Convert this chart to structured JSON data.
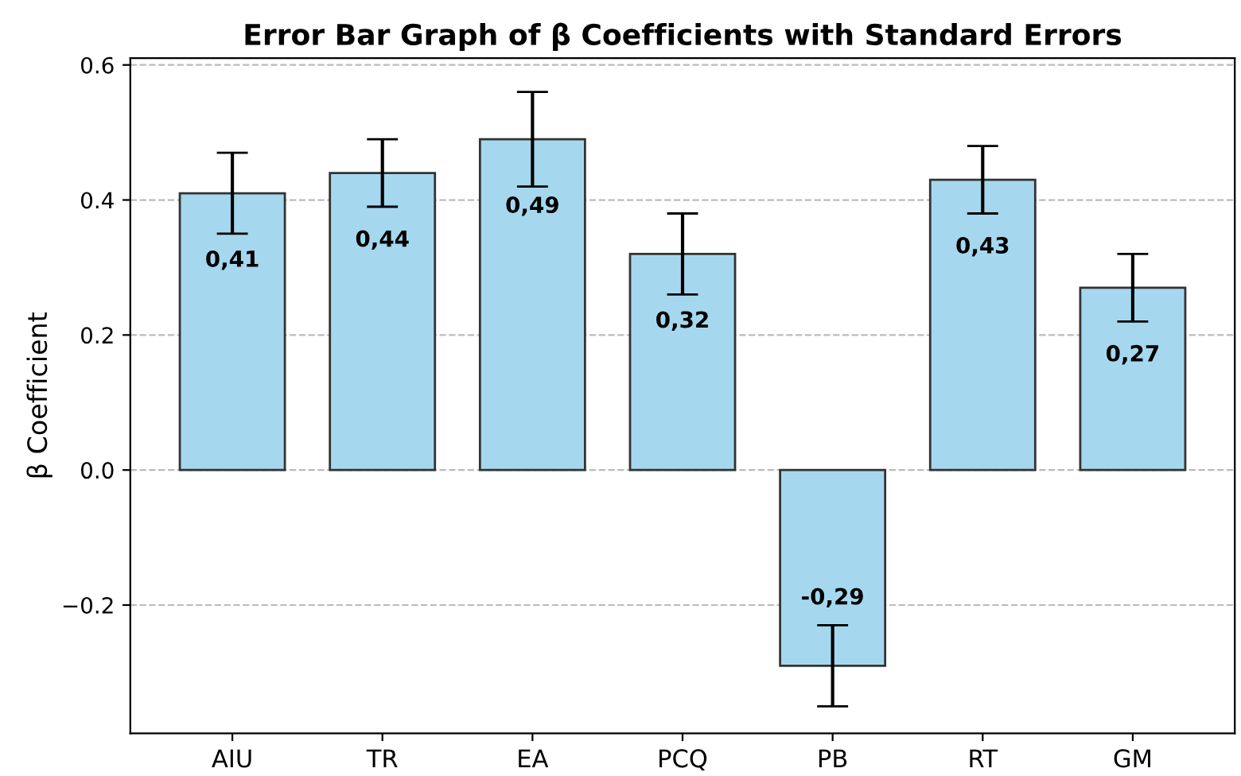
{
  "chart_data": {
    "type": "bar",
    "title": "Error Bar Graph of β Coefficients with Standard Errors",
    "ylabel": "β Coefficient",
    "categories": [
      "AIU",
      "TR",
      "EA",
      "PCQ",
      "PB",
      "RT",
      "GM"
    ],
    "values": [
      0.41,
      0.44,
      0.49,
      0.32,
      -0.29,
      0.43,
      0.27
    ],
    "errors": [
      0.06,
      0.05,
      0.07,
      0.06,
      0.06,
      0.05,
      0.05
    ],
    "value_labels": [
      "0,41",
      "0,44",
      "0,49",
      "0,32",
      "-0,29",
      "0,43",
      "0,27"
    ],
    "color": "#a5d8ee",
    "ylim": [
      -0.39,
      0.61
    ],
    "yticks": [
      {
        "value": -0.2,
        "label": "−0.2"
      },
      {
        "value": 0,
        "label": "0.0"
      },
      0.2,
      0.4,
      0.6
    ],
    "grid": "y"
  }
}
